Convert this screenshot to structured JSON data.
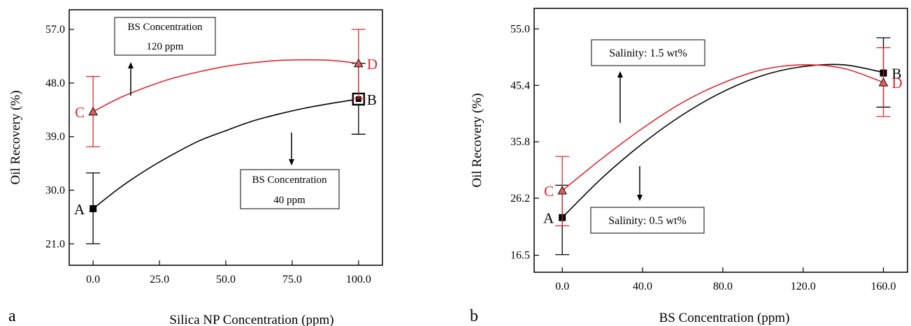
{
  "chart_data": [
    {
      "type": "line",
      "panel_label": "a",
      "xlabel": "Silica NP Concentration (ppm)",
      "ylabel": "Oil Recovery (%)",
      "xlim": [
        -9,
        109
      ],
      "ylim": [
        17.4,
        60.3
      ],
      "xticks": [
        0,
        25,
        50,
        75,
        100
      ],
      "xtick_labels": [
        "0.0",
        "25.0",
        "50.0",
        "75.0",
        "100.0"
      ],
      "yticks": [
        21,
        30,
        39,
        48,
        57
      ],
      "ytick_labels": [
        "21.0",
        "30.0",
        "39.0",
        "48.0",
        "57.0"
      ],
      "grid": false,
      "series": [
        {
          "color": "#000000",
          "marker": "square",
          "curve": {
            "x": [
              0,
              10,
              20,
              30,
              40,
              50,
              60,
              70,
              80,
              90,
              100
            ],
            "y": [
              26.9,
              30.4,
              33.4,
              36.0,
              38.3,
              40.0,
              41.6,
              42.8,
              43.8,
              44.6,
              45.3
            ]
          },
          "points": [
            {
              "x": 0,
              "y": 26.9,
              "label": "A",
              "err_low": 21.0,
              "err_high": 32.9,
              "hollow": false
            },
            {
              "x": 100,
              "y": 45.3,
              "label": "B",
              "err_low": 39.4,
              "err_high": 51.3,
              "hollow": true
            }
          ]
        },
        {
          "color": "#e0282e",
          "marker": "triangle",
          "curve": {
            "x": [
              0,
              10,
              20,
              30,
              40,
              50,
              60,
              70,
              80,
              90,
              100
            ],
            "y": [
              43.2,
              45.5,
              47.3,
              48.8,
              49.9,
              50.8,
              51.4,
              51.8,
              51.9,
              51.8,
              51.3
            ]
          },
          "points": [
            {
              "x": 0,
              "y": 43.2,
              "label": "C",
              "err_low": 37.3,
              "err_high": 49.1
            },
            {
              "x": 100,
              "y": 51.3,
              "label": "D",
              "err_low": 45.4,
              "err_high": 57.0
            }
          ]
        }
      ],
      "annotations": [
        {
          "lines": [
            "BS Concentration",
            "120 ppm"
          ],
          "arrow": "up"
        },
        {
          "lines": [
            "BS Concentration",
            "40 ppm"
          ],
          "arrow": "down"
        }
      ]
    },
    {
      "type": "line",
      "panel_label": "b",
      "xlabel": "BS Concentration (ppm)",
      "ylabel": "Oil Recovery (%)",
      "xlim": [
        -14,
        172
      ],
      "ylim": [
        13.6,
        58.5
      ],
      "xticks": [
        0,
        40,
        80,
        120,
        160
      ],
      "xtick_labels": [
        "0.0",
        "40.0",
        "80.0",
        "120.0",
        "160.0"
      ],
      "yticks": [
        16.5,
        26.2,
        35.8,
        45.4,
        55.0
      ],
      "ytick_labels": [
        "16.5",
        "26.2",
        "35.8",
        "45.4",
        "55.0"
      ],
      "grid": false,
      "series": [
        {
          "color": "#000000",
          "marker": "square",
          "curve": {
            "x": [
              0,
              20,
              40,
              60,
              80,
              100,
              120,
              140,
              160
            ],
            "y": [
              22.9,
              29.7,
              35.5,
              40.4,
              44.3,
              47.1,
              48.6,
              48.9,
              47.6
            ]
          },
          "points": [
            {
              "x": 0,
              "y": 22.9,
              "label": "A",
              "err_low": 16.6,
              "err_high": 28.4
            },
            {
              "x": 160,
              "y": 47.5,
              "label": "B",
              "err_low": 41.7,
              "err_high": 53.5
            }
          ]
        },
        {
          "color": "#e0282e",
          "marker": "triangle",
          "curve": {
            "x": [
              0,
              20,
              40,
              60,
              80,
              100,
              120,
              140,
              160
            ],
            "y": [
              27.5,
              33.0,
              38.1,
              42.5,
              45.8,
              48.1,
              48.9,
              48.3,
              45.9
            ]
          },
          "points": [
            {
              "x": 0,
              "y": 27.5,
              "label": "C",
              "err_low": 21.5,
              "err_high": 33.3
            },
            {
              "x": 160,
              "y": 45.9,
              "label": "D",
              "err_low": 40.1,
              "err_high": 51.8
            }
          ]
        }
      ],
      "annotations": [
        {
          "lines": [
            "Salinity: 1.5 wt%"
          ],
          "arrow": "up"
        },
        {
          "lines": [
            "Salinity: 0.5 wt%"
          ],
          "arrow": "down"
        }
      ]
    }
  ]
}
